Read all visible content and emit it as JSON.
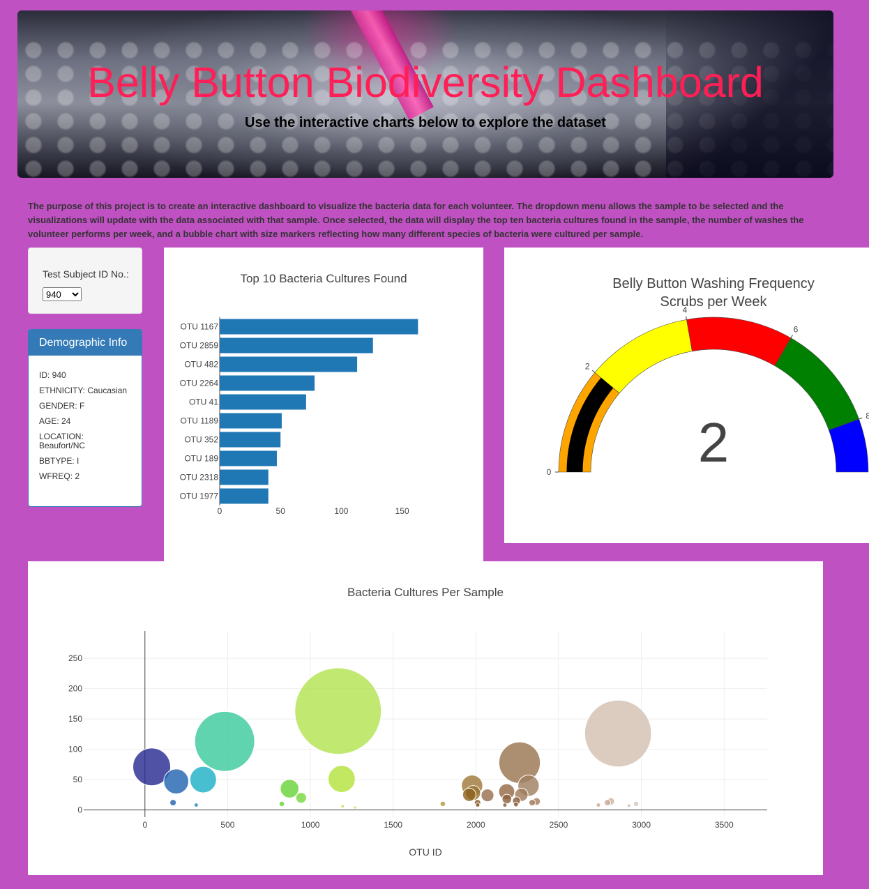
{
  "header": {
    "title": "Belly Button Biodiversity Dashboard",
    "subtitle": "Use the interactive charts below to explore the dataset"
  },
  "description": "The purpose of this project is to create an interactive dashboard to visualize the bacteria data for each volunteer. The dropdown menu allows the sample to be selected and the visualizations will update with the data associated with that sample. Once selected, the data will display the top ten bacteria cultures found in the sample, the number of washes the volunteer performs per week, and a bubble chart with size markers reflecting how many different species of bacteria were cultured per sample.",
  "selector": {
    "label": "Test Subject ID No.:",
    "selected": "940"
  },
  "demographic": {
    "heading": "Demographic Info",
    "items": [
      "ID: 940",
      "ETHNICITY: Caucasian",
      "GENDER: F",
      "AGE: 24",
      "LOCATION: Beaufort/NC",
      "BBTYPE: I",
      "WFREQ: 2"
    ]
  },
  "chart_data": [
    {
      "type": "bar",
      "orientation": "horizontal",
      "title": "Top 10 Bacteria Cultures Found",
      "categories": [
        "OTU 1167",
        "OTU 2859",
        "OTU 482",
        "OTU 2264",
        "OTU 41",
        "OTU 1189",
        "OTU 352",
        "OTU 189",
        "OTU 2318",
        "OTU 1977"
      ],
      "values": [
        163,
        126,
        113,
        78,
        71,
        51,
        50,
        47,
        40,
        40
      ],
      "xlim": [
        0,
        172
      ],
      "xticks": [
        0,
        50,
        100,
        150
      ],
      "color": "#1f77b4"
    },
    {
      "type": "gauge",
      "title": "Belly Button Washing Frequency",
      "subtitle": "Scrubs per Week",
      "value": 2,
      "value_label": "2",
      "range": [
        0,
        9
      ],
      "ticks": [
        "0",
        "2",
        "4",
        "6",
        "8"
      ],
      "steps": [
        {
          "range": [
            0,
            2
          ],
          "color": "#ffa500"
        },
        {
          "range": [
            2,
            4
          ],
          "color": "#ffff00"
        },
        {
          "range": [
            4,
            6
          ],
          "color": "#ff0000"
        },
        {
          "range": [
            6,
            8
          ],
          "color": "#008000"
        },
        {
          "range": [
            8,
            9
          ],
          "color": "#0000ff"
        }
      ],
      "bar_color": "#000000"
    },
    {
      "type": "scatter",
      "mode": "bubble",
      "title": "Bacteria Cultures Per Sample",
      "xlabel": "OTU ID",
      "xlim": [
        -370,
        3760
      ],
      "ylim": [
        -12,
        295
      ],
      "xticks": [
        0,
        500,
        1000,
        1500,
        2000,
        2500,
        3000,
        3500
      ],
      "yticks": [
        0,
        50,
        100,
        150,
        200,
        250
      ],
      "points": [
        {
          "x": 41,
          "y": 71,
          "color": "#2a2c92"
        },
        {
          "x": 189,
          "y": 47,
          "color": "#2365b0"
        },
        {
          "x": 352,
          "y": 50,
          "color": "#20b1c6"
        },
        {
          "x": 482,
          "y": 113,
          "color": "#3ccb9c"
        },
        {
          "x": 1167,
          "y": 163,
          "color": "#b3e352"
        },
        {
          "x": 1189,
          "y": 51,
          "color": "#b5e23e"
        },
        {
          "x": 874,
          "y": 35,
          "color": "#6ad33a"
        },
        {
          "x": 944,
          "y": 20,
          "color": "#75d840"
        },
        {
          "x": 827,
          "y": 10,
          "color": "#6ad33a"
        },
        {
          "x": 170,
          "y": 12,
          "color": "#2365b0"
        },
        {
          "x": 310,
          "y": 8,
          "color": "#2a8bc0"
        },
        {
          "x": 1195,
          "y": 6,
          "color": "#b5e23e"
        },
        {
          "x": 1270,
          "y": 4,
          "color": "#c2e03a"
        },
        {
          "x": 1800,
          "y": 10,
          "color": "#b09a3a"
        },
        {
          "x": 1977,
          "y": 40,
          "color": "#a07a3a"
        },
        {
          "x": 1960,
          "y": 25,
          "color": "#8d6420"
        },
        {
          "x": 1983,
          "y": 28,
          "color": "#9a7330"
        },
        {
          "x": 2010,
          "y": 12,
          "color": "#8a5d2a"
        },
        {
          "x": 2070,
          "y": 24,
          "color": "#9a7050"
        },
        {
          "x": 2011,
          "y": 8,
          "color": "#8a5d2a"
        },
        {
          "x": 2186,
          "y": 30,
          "color": "#966a46"
        },
        {
          "x": 2187,
          "y": 18,
          "color": "#8d6040"
        },
        {
          "x": 2175,
          "y": 8,
          "color": "#8a5d3a"
        },
        {
          "x": 2264,
          "y": 78,
          "color": "#9a7550"
        },
        {
          "x": 2318,
          "y": 40,
          "color": "#a08060"
        },
        {
          "x": 2275,
          "y": 25,
          "color": "#a07c5c"
        },
        {
          "x": 2245,
          "y": 15,
          "color": "#8a6040"
        },
        {
          "x": 2242,
          "y": 9,
          "color": "#8a5a38"
        },
        {
          "x": 2340,
          "y": 12,
          "color": "#a07858"
        },
        {
          "x": 2367,
          "y": 14,
          "color": "#a67c5c"
        },
        {
          "x": 2859,
          "y": 126,
          "color": "#d4c1b2"
        },
        {
          "x": 2795,
          "y": 12,
          "color": "#c9aa95"
        },
        {
          "x": 2815,
          "y": 14,
          "color": "#cdb3a1"
        },
        {
          "x": 2740,
          "y": 8,
          "color": "#c9aa95"
        },
        {
          "x": 2968,
          "y": 10,
          "color": "#d8c8bc"
        },
        {
          "x": 2925,
          "y": 7,
          "color": "#d0bfb2"
        }
      ]
    }
  ]
}
